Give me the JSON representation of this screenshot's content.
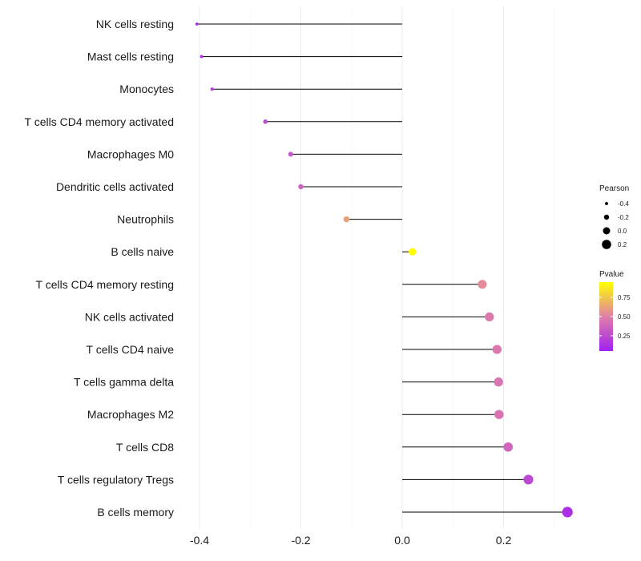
{
  "chart_data": {
    "type": "lollipop",
    "title": "",
    "xlabel": "",
    "ylabel": "",
    "xlim": [
      -0.42,
      0.34
    ],
    "xticks": [
      -0.4,
      -0.2,
      0.0,
      0.2
    ],
    "xtick_labels": [
      "-0.4",
      "-0.2",
      "0.0",
      "0.2"
    ],
    "grid": true,
    "categories": [
      "NK cells resting",
      "Mast cells resting",
      "Monocytes",
      "T cells CD4 memory activated",
      "Macrophages M0",
      "Dendritic cells activated",
      "Neutrophils",
      "B cells naive",
      "T cells CD4 memory resting",
      "NK cells activated",
      "T cells CD4 naive",
      "T cells gamma delta",
      "Macrophages M2",
      "T cells CD8",
      "T cells regulatory  Tregs",
      "B cells memory"
    ],
    "pearson": [
      -0.405,
      -0.396,
      -0.375,
      -0.27,
      -0.22,
      -0.2,
      -0.11,
      0.02,
      0.158,
      0.172,
      0.187,
      0.19,
      0.191,
      0.209,
      0.249,
      0.326
    ],
    "pvalue": [
      0.1,
      0.12,
      0.15,
      0.24,
      0.32,
      0.36,
      0.62,
      0.95,
      0.54,
      0.47,
      0.46,
      0.45,
      0.44,
      0.38,
      0.24,
      0.12
    ],
    "legend": {
      "size_title": "Pearson",
      "size_values": [
        -0.4,
        -0.2,
        0.0,
        0.2
      ],
      "size_labels": [
        "-0.4",
        "-0.2",
        "0.0",
        "0.2"
      ],
      "color_title": "Pvalue",
      "color_ticks": [
        0.25,
        0.5,
        0.75
      ],
      "color_tick_labels": [
        "0.25",
        "0.50",
        "0.75"
      ],
      "color_low": "#a020f0",
      "color_high": "#ffff00",
      "placement": "right"
    }
  }
}
